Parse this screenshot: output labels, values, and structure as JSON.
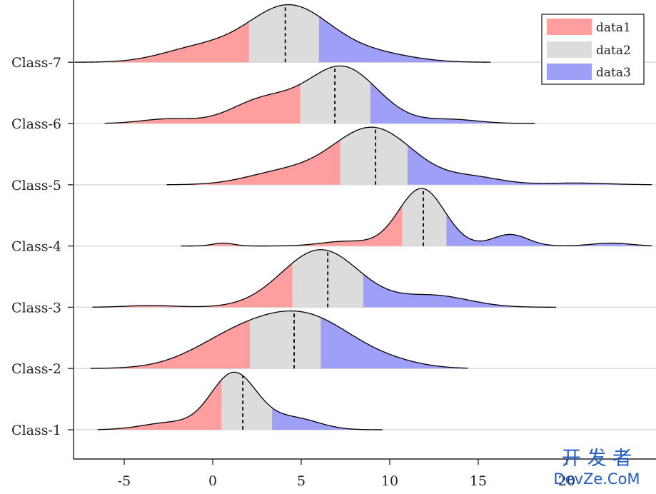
{
  "chart_data": {
    "type": "ridgeline",
    "title": "",
    "xlabel": "",
    "ylabel": "",
    "xlim": [
      -7.8,
      24.8
    ],
    "x_ticks": [
      -5,
      0,
      5,
      10,
      15,
      20
    ],
    "x_tick_labels": [
      "-5",
      "0",
      "5",
      "10",
      "15",
      "20"
    ],
    "categories": [
      "Class-1",
      "Class-2",
      "Class-3",
      "Class-4",
      "Class-5",
      "Class-6",
      "Class-7"
    ],
    "legend": {
      "position": "top-right",
      "entries": [
        {
          "label": "data1",
          "color": "#ff9e9e"
        },
        {
          "label": "data2",
          "color": "#dcdcdc"
        },
        {
          "label": "data3",
          "color": "#9f9ff8"
        }
      ]
    },
    "region_colors": {
      "data1": "#ff9e9e",
      "data2": "#dcdcdc",
      "data3": "#9f9ff8"
    },
    "baseline_color": "#dddddd",
    "outline_color": "#000000",
    "peak_height": 0.94,
    "ridges": [
      {
        "name": "Class-1",
        "xmin": -6.5,
        "xmax": 9.6,
        "q1": 0.5,
        "median": 1.7,
        "q3": 3.35,
        "components": [
          {
            "mu": 1.2,
            "sigma": 1.3,
            "w": 1.0
          },
          {
            "mu": -2.5,
            "sigma": 1.5,
            "w": 0.12
          },
          {
            "mu": 4.6,
            "sigma": 1.4,
            "w": 0.2
          }
        ]
      },
      {
        "name": "Class-2",
        "xmin": -6.9,
        "xmax": 14.4,
        "q1": 2.1,
        "median": 4.6,
        "q3": 6.1,
        "components": [
          {
            "mu": 5.2,
            "sigma": 2.8,
            "w": 1.0
          },
          {
            "mu": 1.0,
            "sigma": 2.4,
            "w": 0.45
          },
          {
            "mu": 10.5,
            "sigma": 1.6,
            "w": 0.05
          }
        ]
      },
      {
        "name": "Class-3",
        "xmin": -6.8,
        "xmax": 19.4,
        "q1": 4.5,
        "median": 6.5,
        "q3": 8.5,
        "components": [
          {
            "mu": 6.1,
            "sigma": 2.2,
            "w": 1.0
          },
          {
            "mu": 12.5,
            "sigma": 2.0,
            "w": 0.2
          },
          {
            "mu": -3.5,
            "sigma": 1.4,
            "w": 0.03
          }
        ]
      },
      {
        "name": "Class-4",
        "xmin": -1.8,
        "xmax": 24.8,
        "q1": 10.7,
        "median": 11.9,
        "q3": 13.2,
        "components": [
          {
            "mu": 11.8,
            "sigma": 1.3,
            "w": 1.0
          },
          {
            "mu": 16.8,
            "sigma": 1.0,
            "w": 0.2
          },
          {
            "mu": 7.5,
            "sigma": 1.4,
            "w": 0.08
          },
          {
            "mu": 0.6,
            "sigma": 0.6,
            "w": 0.05
          },
          {
            "mu": 22.5,
            "sigma": 1.1,
            "w": 0.05
          }
        ]
      },
      {
        "name": "Class-5",
        "xmin": -2.6,
        "xmax": 24.8,
        "q1": 7.2,
        "median": 9.2,
        "q3": 11.0,
        "components": [
          {
            "mu": 9.0,
            "sigma": 2.3,
            "w": 1.0
          },
          {
            "mu": 3.8,
            "sigma": 2.0,
            "w": 0.2
          },
          {
            "mu": 14.8,
            "sigma": 1.6,
            "w": 0.12
          },
          {
            "mu": 20.5,
            "sigma": 1.8,
            "w": 0.03
          }
        ]
      },
      {
        "name": "Class-6",
        "xmin": -6.1,
        "xmax": 18.2,
        "q1": 4.95,
        "median": 6.9,
        "q3": 8.9,
        "components": [
          {
            "mu": 7.3,
            "sigma": 2.0,
            "w": 1.0
          },
          {
            "mu": 2.8,
            "sigma": 1.8,
            "w": 0.4
          },
          {
            "mu": -2.5,
            "sigma": 1.5,
            "w": 0.08
          },
          {
            "mu": 13.5,
            "sigma": 1.5,
            "w": 0.07
          }
        ]
      },
      {
        "name": "Class-7",
        "xmin": -7.8,
        "xmax": 15.7,
        "q1": 2.05,
        "median": 4.1,
        "q3": 6.0,
        "components": [
          {
            "mu": 4.3,
            "sigma": 2.4,
            "w": 1.0
          },
          {
            "mu": -1.0,
            "sigma": 2.0,
            "w": 0.22
          },
          {
            "mu": 9.5,
            "sigma": 2.0,
            "w": 0.12
          }
        ]
      }
    ]
  },
  "watermark": {
    "line1": "开 发 者",
    "line2": "DevZe.CoM",
    "color": "#1f5bc9"
  }
}
